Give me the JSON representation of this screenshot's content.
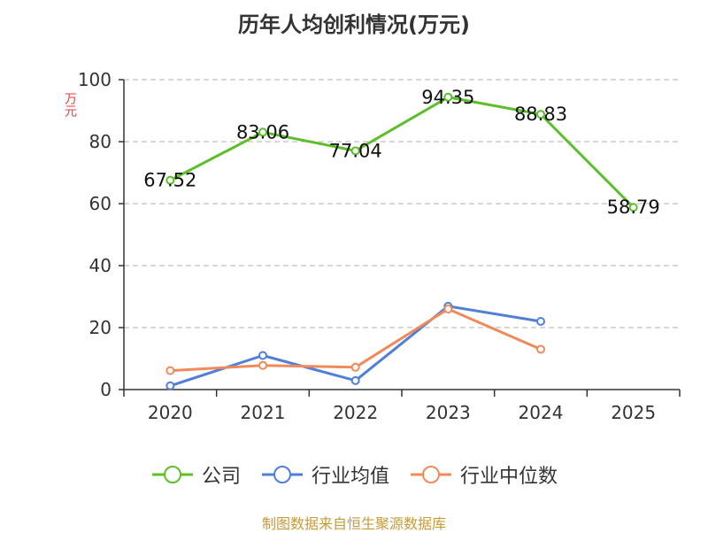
{
  "title": "历年人均创利情况(万元)",
  "source": "制图数据来自恒生聚源数据库",
  "colors": {
    "company": "#5cbf2a",
    "industry_avg": "#4f7fd9",
    "industry_median": "#f08a5a",
    "axis": "#333333",
    "grid": "#cccccc",
    "ylabel": "#e03c3c"
  },
  "chart_data": {
    "type": "line",
    "title": "历年人均创利情况(万元)",
    "ylabel": "万元",
    "xlabel": "",
    "ylim": [
      0,
      100
    ],
    "yticks": [
      0,
      20,
      40,
      60,
      80,
      100
    ],
    "grid": true,
    "legend_position": "bottom",
    "categories": [
      "2020",
      "2021",
      "2022",
      "2023",
      "2024",
      "2025"
    ],
    "series": [
      {
        "name": "公司",
        "color": "#5cbf2a",
        "values": [
          67.52,
          83.06,
          77.04,
          94.35,
          88.83,
          58.79
        ],
        "show_labels": true
      },
      {
        "name": "行业均值",
        "color": "#4f7fd9",
        "values": [
          1.2,
          11.0,
          2.9,
          26.9,
          22.0,
          null
        ],
        "show_labels": false
      },
      {
        "name": "行业中位数",
        "color": "#f08a5a",
        "values": [
          6.1,
          7.8,
          7.2,
          26.0,
          13.0,
          null
        ],
        "show_labels": false
      }
    ]
  }
}
